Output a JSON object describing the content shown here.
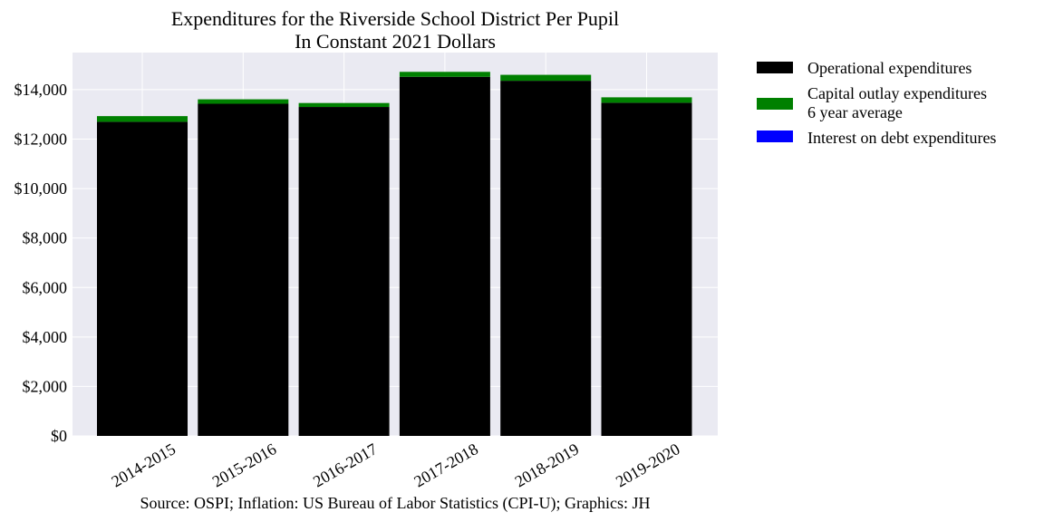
{
  "chart_data": {
    "type": "bar",
    "stacked": true,
    "title": "Expenditures for the Riverside School District Per Pupil",
    "subtitle": "In Constant 2021 Dollars",
    "categories": [
      "2014-2015",
      "2015-2016",
      "2016-2017",
      "2017-2018",
      "2018-2019",
      "2019-2020"
    ],
    "series": [
      {
        "name": "Operational expenditures",
        "color": "#000000",
        "values": [
          12700,
          13430,
          13300,
          14520,
          14360,
          13470
        ]
      },
      {
        "name": "Capital outlay expenditures\n6 year average",
        "color": "#008000",
        "values": [
          230,
          180,
          160,
          200,
          240,
          220
        ]
      },
      {
        "name": "Interest on debt expenditures",
        "color": "#0000ff",
        "values": [
          0,
          0,
          0,
          0,
          0,
          0
        ]
      }
    ],
    "ylim": [
      0,
      15500
    ],
    "yticks": [
      0,
      2000,
      4000,
      6000,
      8000,
      10000,
      12000,
      14000
    ],
    "ytick_labels": [
      "$0",
      "$2,000",
      "$4,000",
      "$6,000",
      "$8,000",
      "$10,000",
      "$12,000",
      "$14,000"
    ],
    "xlabel": "",
    "ylabel": "",
    "grid": true,
    "legend_position": "outside-right",
    "plot_background": "#eaeaf2",
    "source": "Source: OSPI; Inflation: US Bureau of Labor Statistics (CPI-U); Graphics: JH"
  }
}
